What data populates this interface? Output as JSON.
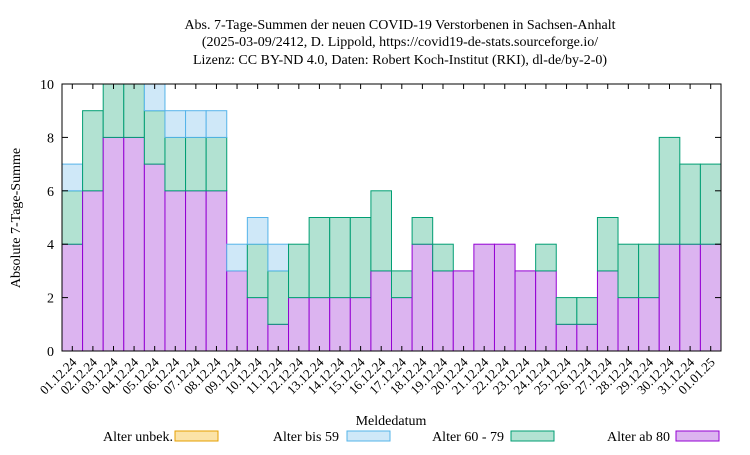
{
  "chart_data": {
    "type": "bar",
    "stacked": true,
    "title_lines": [
      "Abs. 7-Tage-Summen der neuen COVID-19 Verstorbenen in Sachsen-Anhalt",
      "(2025-03-09/2412, D. Lippold, https://covid19-de-stats.sourceforge.io/",
      "Lizenz: CC BY-ND 4.0, Daten: Robert Koch-Institut (RKI), dl-de/by-2-0)"
    ],
    "xlabel": "Meldedatum",
    "ylabel": "Absolute 7-Tage-Summe",
    "ylim": [
      0,
      10
    ],
    "yticks": [
      0,
      2,
      4,
      6,
      8,
      10
    ],
    "grid": false,
    "legend_position": "bottom",
    "categories": [
      "01.12.24",
      "02.12.24",
      "03.12.24",
      "04.12.24",
      "05.12.24",
      "06.12.24",
      "07.12.24",
      "08.12.24",
      "09.12.24",
      "10.12.24",
      "11.12.24",
      "12.12.24",
      "13.12.24",
      "14.12.24",
      "15.12.24",
      "16.12.24",
      "17.12.24",
      "18.12.24",
      "19.12.24",
      "20.12.24",
      "21.12.24",
      "22.12.24",
      "23.12.24",
      "24.12.24",
      "25.12.24",
      "26.12.24",
      "27.12.24",
      "28.12.24",
      "29.12.24",
      "30.12.24",
      "31.12.24",
      "01.01.25"
    ],
    "series": [
      {
        "name": "Alter ab 80",
        "fill": "#dcb4f0",
        "stroke": "#9400d3",
        "values": [
          4,
          6,
          8,
          8,
          7,
          6,
          6,
          6,
          3,
          2,
          1,
          2,
          2,
          2,
          2,
          3,
          2,
          4,
          3,
          3,
          4,
          4,
          3,
          3,
          1,
          1,
          3,
          2,
          2,
          4,
          4,
          4
        ]
      },
      {
        "name": "Alter 60 - 79",
        "fill": "#b2e2d2",
        "stroke": "#009e73",
        "values": [
          2,
          3,
          2,
          2,
          2,
          2,
          2,
          2,
          0,
          2,
          2,
          2,
          3,
          3,
          3,
          3,
          1,
          1,
          1,
          0,
          0,
          0,
          0,
          1,
          1,
          1,
          2,
          2,
          2,
          4,
          3,
          3
        ]
      },
      {
        "name": "Alter bis 59",
        "fill": "#cfe8f8",
        "stroke": "#56b4e9",
        "values": [
          1,
          0,
          0,
          0,
          1,
          1,
          1,
          1,
          1,
          1,
          1,
          0,
          0,
          0,
          0,
          0,
          0,
          0,
          0,
          0,
          0,
          0,
          0,
          0,
          0,
          0,
          0,
          0,
          0,
          0,
          0,
          0
        ]
      },
      {
        "name": "Alter unbek.",
        "fill": "#fbe3a8",
        "stroke": "#e69f00",
        "values": [
          0,
          0,
          0,
          0,
          0,
          0,
          0,
          0,
          0,
          0,
          0,
          0,
          0,
          0,
          0,
          0,
          0,
          0,
          0,
          0,
          0,
          0,
          0,
          0,
          0,
          0,
          0,
          0,
          0,
          0,
          0,
          0
        ]
      }
    ],
    "legend_order": [
      "Alter unbek.",
      "Alter bis 59",
      "Alter 60 - 79",
      "Alter ab 80"
    ]
  }
}
